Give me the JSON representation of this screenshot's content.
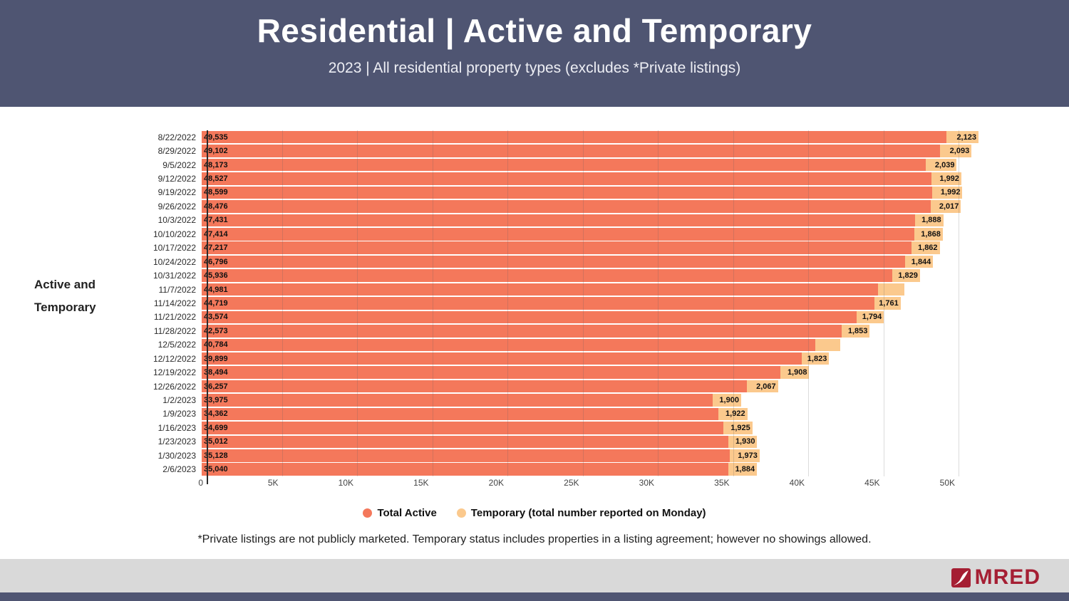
{
  "header": {
    "title": "Residential | Active and Temporary",
    "subtitle": "2023 | All residential property types (excludes *Private listings)"
  },
  "side_label": {
    "line1": "Active and",
    "line2": "Temporary"
  },
  "legend": {
    "items": [
      {
        "label": "Total Active"
      },
      {
        "label": "Temporary (total number reported on Monday)"
      }
    ]
  },
  "footnote": "*Private listings are not publicly marketed. Temporary status includes properties in a listing agreement; however no showings allowed.",
  "footer": {
    "logo_text": "MRED"
  },
  "colors": {
    "header_bg": "#4F5572",
    "footer_band": "#D9D9D9",
    "logo_red": "#A51E33",
    "total_active": "#F4785B",
    "temporary": "#FBC98D"
  },
  "chart_data": {
    "type": "bar",
    "orientation": "horizontal-stacked",
    "title": "Residential | Active and Temporary",
    "xlabel": "",
    "ylabel": "Active and Temporary",
    "xlim": [
      0,
      52500
    ],
    "grid": true,
    "legend_position": "bottom",
    "x_ticks": [
      0,
      5000,
      10000,
      15000,
      20000,
      25000,
      30000,
      35000,
      40000,
      45000,
      50000
    ],
    "x_tick_labels": [
      "0",
      "5K",
      "10K",
      "15K",
      "20K",
      "25K",
      "30K",
      "35K",
      "40K",
      "45K",
      "50K"
    ],
    "categories": [
      "8/22/2022",
      "8/29/2022",
      "9/5/2022",
      "9/12/2022",
      "9/19/2022",
      "9/26/2022",
      "10/3/2022",
      "10/10/2022",
      "10/17/2022",
      "10/24/2022",
      "10/31/2022",
      "11/7/2022",
      "11/14/2022",
      "11/21/2022",
      "11/28/2022",
      "12/5/2022",
      "12/12/2022",
      "12/19/2022",
      "12/26/2022",
      "1/2/2023",
      "1/9/2023",
      "1/16/2023",
      "1/23/2023",
      "1/30/2023",
      "2/6/2023"
    ],
    "series": [
      {
        "name": "Total Active",
        "color": "#F4785B",
        "values": [
          49535,
          49102,
          48173,
          48527,
          48599,
          48476,
          47431,
          47414,
          47217,
          46796,
          45936,
          44981,
          44719,
          43574,
          42573,
          40784,
          39899,
          38494,
          36257,
          33975,
          34362,
          34699,
          35012,
          35128,
          35040
        ],
        "labels": [
          "49,535",
          "49,102",
          "48,173",
          "48,527",
          "48,599",
          "48,476",
          "47,431",
          "47,414",
          "47,217",
          "46,796",
          "45,936",
          "44,981",
          "44,719",
          "43,574",
          "42,573",
          "40,784",
          "39,899",
          "38,494",
          "36,257",
          "33,975",
          "34,362",
          "34,699",
          "35,012",
          "35,128",
          "35,040"
        ]
      },
      {
        "name": "Temporary (total number reported on Monday)",
        "color": "#FBC98D",
        "values": [
          2123,
          2093,
          2039,
          1992,
          1992,
          2017,
          1888,
          1868,
          1862,
          1844,
          1829,
          1770,
          1761,
          1794,
          1853,
          1700,
          1823,
          1908,
          2067,
          1900,
          1922,
          1925,
          1930,
          1973,
          1884
        ],
        "labels": [
          "2,123",
          "2,093",
          "2,039",
          "1,992",
          "1,992",
          "2,017",
          "1,888",
          "1,868",
          "1,862",
          "1,844",
          "1,829",
          "",
          "1,761",
          "1,794",
          "1,853",
          "",
          "1,823",
          "1,908",
          "2,067",
          "1,900",
          "1,922",
          "1,925",
          "1,930",
          "1,973",
          "1,884"
        ]
      }
    ]
  }
}
